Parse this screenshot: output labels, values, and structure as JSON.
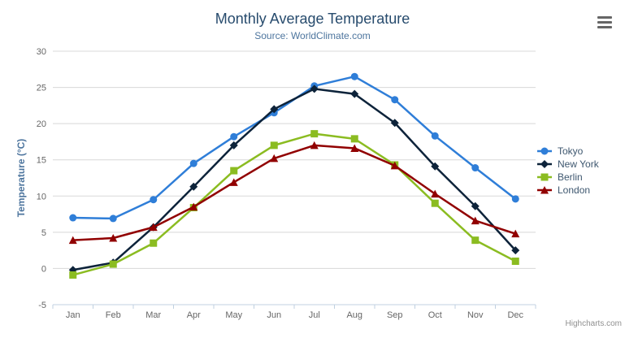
{
  "header": {
    "title": "Monthly Average Temperature",
    "subtitle": "Source: WorldClimate.com"
  },
  "menu": {
    "hamburger_icon": "context-menu"
  },
  "credits": {
    "label": "Highcharts.com"
  },
  "colors": {
    "title": "#274b6d",
    "subtitle": "#4d759e",
    "axis_title": "#4d759e",
    "tick_label": "#666666",
    "grid_line": "#d8d8d8",
    "axis_line": "#c0d0e0",
    "legend_text": "#3e576f",
    "credits_text": "#909090",
    "menu_icon": "#666666"
  },
  "chart_data": {
    "type": "line",
    "title": "Monthly Average Temperature",
    "subtitle": "Source: WorldClimate.com",
    "categories": [
      "Jan",
      "Feb",
      "Mar",
      "Apr",
      "May",
      "Jun",
      "Jul",
      "Aug",
      "Sep",
      "Oct",
      "Nov",
      "Dec"
    ],
    "series": [
      {
        "name": "Tokyo",
        "color": "#2f7ed8",
        "marker": "circle",
        "values": [
          7.0,
          6.9,
          9.5,
          14.5,
          18.2,
          21.5,
          25.2,
          26.5,
          23.3,
          18.3,
          13.9,
          9.6
        ]
      },
      {
        "name": "New York",
        "color": "#0d233a",
        "marker": "diamond",
        "values": [
          -0.2,
          0.8,
          5.7,
          11.3,
          17.0,
          22.0,
          24.8,
          24.1,
          20.1,
          14.1,
          8.6,
          2.5
        ]
      },
      {
        "name": "Berlin",
        "color": "#8bbc21",
        "marker": "square",
        "values": [
          -0.9,
          0.6,
          3.5,
          8.4,
          13.5,
          17.0,
          18.6,
          17.9,
          14.3,
          9.0,
          3.9,
          1.0
        ]
      },
      {
        "name": "London",
        "color": "#910000",
        "marker": "triangle",
        "values": [
          3.9,
          4.2,
          5.7,
          8.5,
          11.9,
          15.2,
          17.0,
          16.6,
          14.2,
          10.3,
          6.6,
          4.8
        ]
      }
    ],
    "xlabel": "",
    "ylabel": "Temperature (°C)",
    "ylim": [
      -5,
      30
    ],
    "ytick_step": 5,
    "grid": true,
    "legend_position": "right"
  }
}
